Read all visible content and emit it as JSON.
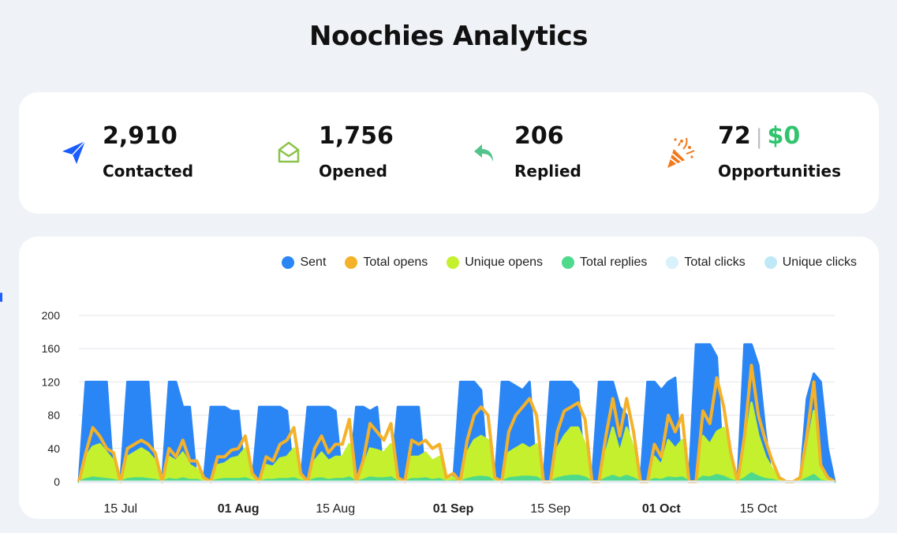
{
  "page": {
    "title": "Noochies Analytics"
  },
  "stats": [
    {
      "value": "2,910",
      "label": "Contacted",
      "icon": "paper-plane-icon",
      "color": "#1a5cff"
    },
    {
      "value": "1,756",
      "label": "Opened",
      "icon": "open-envelope-icon",
      "color": "#8bc34a"
    },
    {
      "value": "206",
      "label": "Replied",
      "icon": "reply-arrow-icon",
      "color": "#52c48b"
    },
    {
      "value": "72",
      "separator": "|",
      "value2": "$0",
      "label": "Opportunities",
      "icon": "party-popper-icon",
      "color": "#f07a1e"
    }
  ],
  "chart_data": {
    "type": "area",
    "legend_position": "top-right",
    "ylim": [
      0,
      200
    ],
    "yticks": [
      "0",
      "40",
      "80",
      "120",
      "160",
      "200"
    ],
    "xticks": [
      {
        "label": "15 Jul",
        "bold": false
      },
      {
        "label": "01 Aug",
        "bold": true
      },
      {
        "label": "15 Aug",
        "bold": false
      },
      {
        "label": "01 Sep",
        "bold": true
      },
      {
        "label": "15 Sep",
        "bold": false
      },
      {
        "label": "01 Oct",
        "bold": true
      },
      {
        "label": "15 Oct",
        "bold": false
      }
    ],
    "x": [
      "2024-07-09",
      "2024-07-10",
      "2024-07-11",
      "2024-07-12",
      "2024-07-13",
      "2024-07-14",
      "2024-07-15",
      "2024-07-16",
      "2024-07-17",
      "2024-07-18",
      "2024-07-19",
      "2024-07-20",
      "2024-07-21",
      "2024-07-22",
      "2024-07-23",
      "2024-07-24",
      "2024-07-25",
      "2024-07-26",
      "2024-07-27",
      "2024-07-28",
      "2024-07-29",
      "2024-07-30",
      "2024-07-31",
      "2024-08-01",
      "2024-08-02",
      "2024-08-03",
      "2024-08-04",
      "2024-08-05",
      "2024-08-06",
      "2024-08-07",
      "2024-08-08",
      "2024-08-09",
      "2024-08-10",
      "2024-08-11",
      "2024-08-12",
      "2024-08-13",
      "2024-08-14",
      "2024-08-15",
      "2024-08-16",
      "2024-08-17",
      "2024-08-18",
      "2024-08-19",
      "2024-08-20",
      "2024-08-21",
      "2024-08-22",
      "2024-08-23",
      "2024-08-24",
      "2024-08-25",
      "2024-08-26",
      "2024-08-27",
      "2024-08-28",
      "2024-08-29",
      "2024-08-30",
      "2024-08-31",
      "2024-09-01",
      "2024-09-02",
      "2024-09-03",
      "2024-09-04",
      "2024-09-05",
      "2024-09-06",
      "2024-09-07",
      "2024-09-08",
      "2024-09-09",
      "2024-09-10",
      "2024-09-11",
      "2024-09-12",
      "2024-09-13",
      "2024-09-14",
      "2024-09-15",
      "2024-09-16",
      "2024-09-17",
      "2024-09-18",
      "2024-09-19",
      "2024-09-20",
      "2024-09-21",
      "2024-09-22",
      "2024-09-23",
      "2024-09-24",
      "2024-09-25",
      "2024-09-26",
      "2024-09-27",
      "2024-09-28",
      "2024-09-29",
      "2024-09-30",
      "2024-10-01",
      "2024-10-02",
      "2024-10-03",
      "2024-10-04",
      "2024-10-05",
      "2024-10-06",
      "2024-10-07",
      "2024-10-08",
      "2024-10-09",
      "2024-10-10",
      "2024-10-11",
      "2024-10-12",
      "2024-10-13",
      "2024-10-14",
      "2024-10-15",
      "2024-10-16",
      "2024-10-17",
      "2024-10-18",
      "2024-10-19",
      "2024-10-20",
      "2024-10-21",
      "2024-10-22",
      "2024-10-23",
      "2024-10-24",
      "2024-10-25",
      "2024-10-26"
    ],
    "series": [
      {
        "name": "Sent",
        "color": "#2b86f5",
        "style": "area",
        "values": [
          0,
          120,
          120,
          120,
          120,
          0,
          0,
          120,
          120,
          120,
          120,
          0,
          0,
          120,
          120,
          90,
          90,
          0,
          0,
          90,
          90,
          90,
          85,
          85,
          0,
          0,
          90,
          90,
          90,
          90,
          85,
          0,
          0,
          90,
          90,
          90,
          90,
          85,
          0,
          0,
          90,
          90,
          85,
          90,
          0,
          0,
          90,
          90,
          90,
          90,
          0,
          0,
          0,
          0,
          0,
          120,
          120,
          120,
          110,
          0,
          0,
          120,
          120,
          115,
          110,
          120,
          0,
          0,
          120,
          120,
          120,
          120,
          110,
          0,
          0,
          120,
          120,
          120,
          90,
          80,
          0,
          0,
          120,
          120,
          110,
          120,
          125,
          0,
          0,
          165,
          165,
          165,
          150,
          0,
          0,
          0,
          165,
          165,
          140,
          60,
          0,
          0,
          0,
          0,
          0,
          100,
          130,
          120,
          40,
          0
        ]
      },
      {
        "name": "Total opens",
        "color": "#f3b22a",
        "style": "line",
        "values": [
          0,
          35,
          65,
          55,
          40,
          35,
          0,
          40,
          45,
          50,
          45,
          35,
          0,
          40,
          30,
          50,
          25,
          25,
          5,
          0,
          30,
          30,
          38,
          40,
          55,
          10,
          0,
          30,
          25,
          45,
          50,
          65,
          10,
          0,
          40,
          55,
          35,
          45,
          45,
          75,
          0,
          25,
          70,
          60,
          50,
          70,
          5,
          0,
          50,
          45,
          50,
          40,
          45,
          5,
          10,
          0,
          50,
          80,
          90,
          80,
          5,
          0,
          60,
          80,
          90,
          100,
          80,
          0,
          0,
          60,
          85,
          90,
          95,
          75,
          0,
          0,
          55,
          100,
          55,
          100,
          60,
          0,
          0,
          45,
          30,
          80,
          60,
          80,
          0,
          0,
          85,
          70,
          125,
          90,
          35,
          0,
          55,
          140,
          80,
          50,
          25,
          5,
          0,
          0,
          5,
          55,
          120,
          20,
          5,
          0
        ]
      },
      {
        "name": "Unique opens",
        "color": "#c4f02e",
        "style": "area",
        "values": [
          0,
          30,
          42,
          45,
          35,
          25,
          0,
          30,
          35,
          40,
          35,
          25,
          0,
          30,
          25,
          35,
          20,
          15,
          3,
          0,
          20,
          22,
          28,
          30,
          40,
          5,
          0,
          20,
          18,
          28,
          30,
          40,
          5,
          0,
          25,
          35,
          25,
          30,
          30,
          45,
          0,
          18,
          40,
          38,
          35,
          45,
          3,
          0,
          30,
          30,
          35,
          25,
          30,
          3,
          5,
          0,
          35,
          50,
          55,
          50,
          3,
          0,
          35,
          40,
          45,
          40,
          45,
          0,
          0,
          40,
          55,
          65,
          65,
          45,
          0,
          0,
          35,
          65,
          35,
          65,
          40,
          0,
          0,
          30,
          20,
          50,
          40,
          50,
          0,
          0,
          55,
          45,
          60,
          65,
          25,
          0,
          35,
          95,
          55,
          30,
          15,
          3,
          0,
          0,
          3,
          35,
          85,
          15,
          3,
          0
        ]
      },
      {
        "name": "Total replies",
        "color": "#4fd98a",
        "style": "area",
        "values": [
          0,
          3,
          5,
          4,
          3,
          2,
          0,
          3,
          4,
          4,
          3,
          2,
          0,
          3,
          2,
          4,
          2,
          2,
          0,
          0,
          2,
          3,
          3,
          3,
          4,
          1,
          0,
          2,
          2,
          3,
          3,
          4,
          1,
          0,
          3,
          4,
          2,
          3,
          3,
          5,
          0,
          2,
          5,
          4,
          4,
          5,
          0,
          0,
          3,
          3,
          4,
          2,
          3,
          0,
          1,
          0,
          3,
          5,
          6,
          5,
          0,
          0,
          4,
          5,
          6,
          6,
          5,
          0,
          0,
          4,
          6,
          7,
          7,
          5,
          0,
          0,
          4,
          7,
          4,
          7,
          4,
          0,
          0,
          3,
          2,
          5,
          4,
          5,
          0,
          0,
          6,
          5,
          8,
          6,
          2,
          0,
          4,
          10,
          6,
          3,
          2,
          0,
          0,
          0,
          0,
          4,
          8,
          1,
          0,
          0
        ]
      },
      {
        "name": "Total clicks",
        "color": "#d8f1fb",
        "style": "line",
        "values": [
          0,
          0,
          0,
          0,
          0,
          0,
          0,
          0,
          0,
          0,
          0,
          0,
          0,
          0,
          0,
          0,
          0,
          0,
          0,
          0,
          0,
          0,
          0,
          0,
          0,
          0,
          0,
          0,
          0,
          0,
          0,
          0,
          0,
          0,
          0,
          0,
          0,
          0,
          0,
          0,
          0,
          0,
          0,
          0,
          0,
          0,
          0,
          0,
          0,
          0,
          0,
          0,
          0,
          0,
          0,
          0,
          0,
          0,
          0,
          0,
          0,
          0,
          0,
          0,
          0,
          0,
          0,
          0,
          0,
          0,
          0,
          0,
          0,
          0,
          0,
          0,
          0,
          0,
          0,
          0,
          0,
          0,
          0,
          0,
          0,
          0,
          0,
          0,
          0,
          0,
          0,
          0,
          0,
          0,
          0,
          0,
          0,
          0,
          0,
          0,
          0,
          0,
          0,
          0,
          0,
          0,
          0,
          0,
          0,
          0
        ]
      },
      {
        "name": "Unique clicks",
        "color": "#bfe9f7",
        "style": "line",
        "values": [
          0,
          0,
          0,
          0,
          0,
          0,
          0,
          0,
          0,
          0,
          0,
          0,
          0,
          0,
          0,
          0,
          0,
          0,
          0,
          0,
          0,
          0,
          0,
          0,
          0,
          0,
          0,
          0,
          0,
          0,
          0,
          0,
          0,
          0,
          0,
          0,
          0,
          0,
          0,
          0,
          0,
          0,
          0,
          0,
          0,
          0,
          0,
          0,
          0,
          0,
          0,
          0,
          0,
          0,
          0,
          0,
          0,
          0,
          0,
          0,
          0,
          0,
          0,
          0,
          0,
          0,
          0,
          0,
          0,
          0,
          0,
          0,
          0,
          0,
          0,
          0,
          0,
          0,
          0,
          0,
          0,
          0,
          0,
          0,
          0,
          0,
          0,
          0,
          0,
          0,
          0,
          0,
          0,
          0,
          0,
          0,
          0,
          0,
          0,
          0,
          0,
          0,
          0,
          0,
          0,
          0,
          0,
          0,
          0,
          0
        ]
      }
    ]
  }
}
